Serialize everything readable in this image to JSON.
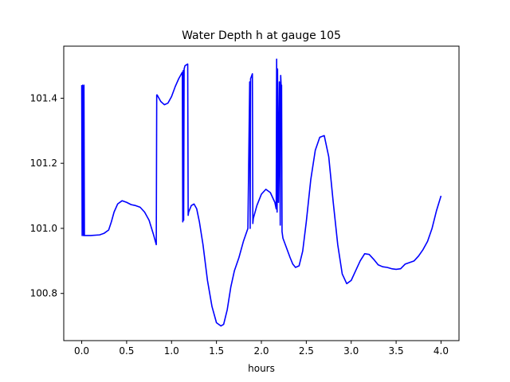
{
  "chart_data": {
    "type": "line",
    "title": "Water Depth h at gauge 105",
    "xlabel": "hours",
    "ylabel": "",
    "xlim": [
      -0.2,
      4.2
    ],
    "ylim": [
      100.655,
      101.56
    ],
    "xticks": [
      0.0,
      0.5,
      1.0,
      1.5,
      2.0,
      2.5,
      3.0,
      3.5,
      4.0
    ],
    "xtick_labels": [
      "0.0",
      "0.5",
      "1.0",
      "1.5",
      "2.0",
      "2.5",
      "3.0",
      "3.5",
      "4.0"
    ],
    "yticks": [
      100.8,
      101.0,
      101.2,
      101.4
    ],
    "ytick_labels": [
      "100.8",
      "101.0",
      "101.2",
      "101.4"
    ],
    "grid": false,
    "legend": "none",
    "series": [
      {
        "color": "#0000ff",
        "x": [
          0.0,
          0.005,
          0.01,
          0.02,
          0.025,
          0.03,
          0.035,
          0.1,
          0.2,
          0.25,
          0.3,
          0.33,
          0.36,
          0.4,
          0.45,
          0.5,
          0.55,
          0.6,
          0.65,
          0.7,
          0.75,
          0.8,
          0.83,
          0.835,
          0.84,
          0.88,
          0.92,
          0.96,
          1.0,
          1.04,
          1.08,
          1.12,
          1.125,
          1.13,
          1.135,
          1.14,
          1.145,
          1.15,
          1.18,
          1.185,
          1.19,
          1.22,
          1.25,
          1.28,
          1.31,
          1.35,
          1.4,
          1.45,
          1.5,
          1.55,
          1.58,
          1.62,
          1.66,
          1.7,
          1.75,
          1.8,
          1.85,
          1.87,
          1.875,
          1.88,
          1.9,
          1.905,
          1.91,
          1.95,
          2.0,
          2.05,
          2.1,
          2.15,
          2.165,
          2.17,
          2.175,
          2.18,
          2.19,
          2.2,
          2.21,
          2.215,
          2.22,
          2.225,
          2.23,
          2.24,
          2.28,
          2.32,
          2.35,
          2.38,
          2.42,
          2.46,
          2.5,
          2.55,
          2.6,
          2.65,
          2.7,
          2.75,
          2.8,
          2.85,
          2.9,
          2.95,
          3.0,
          3.05,
          3.1,
          3.15,
          3.2,
          3.25,
          3.3,
          3.35,
          3.4,
          3.45,
          3.5,
          3.55,
          3.6,
          3.65,
          3.7,
          3.75,
          3.8,
          3.85,
          3.9,
          3.95,
          4.0
        ],
        "y": [
          101.44,
          100.978,
          101.44,
          100.978,
          101.44,
          100.978,
          100.978,
          100.978,
          100.98,
          100.985,
          100.995,
          101.02,
          101.05,
          101.075,
          101.085,
          101.08,
          101.073,
          101.07,
          101.065,
          101.05,
          101.025,
          100.98,
          100.95,
          101.41,
          101.41,
          101.39,
          101.38,
          101.385,
          101.405,
          101.435,
          101.46,
          101.48,
          101.02,
          101.485,
          101.025,
          101.49,
          101.495,
          101.5,
          101.505,
          101.04,
          101.05,
          101.07,
          101.075,
          101.06,
          101.02,
          100.95,
          100.84,
          100.76,
          100.71,
          100.7,
          100.705,
          100.75,
          100.82,
          100.87,
          100.91,
          100.96,
          101.0,
          101.45,
          101.0,
          101.46,
          101.475,
          101.015,
          101.03,
          101.07,
          101.105,
          101.12,
          101.11,
          101.08,
          101.06,
          101.52,
          101.05,
          101.49,
          101.08,
          101.45,
          101.01,
          101.47,
          101.44,
          101.44,
          100.99,
          100.97,
          100.94,
          100.91,
          100.89,
          100.88,
          100.885,
          100.93,
          101.02,
          101.15,
          101.24,
          101.28,
          101.285,
          101.22,
          101.08,
          100.95,
          100.86,
          100.83,
          100.84,
          100.87,
          100.9,
          100.922,
          100.92,
          100.905,
          100.888,
          100.882,
          100.88,
          100.876,
          100.874,
          100.876,
          100.89,
          100.895,
          100.9,
          100.915,
          100.935,
          100.96,
          101.0,
          101.055,
          101.1
        ]
      }
    ]
  }
}
